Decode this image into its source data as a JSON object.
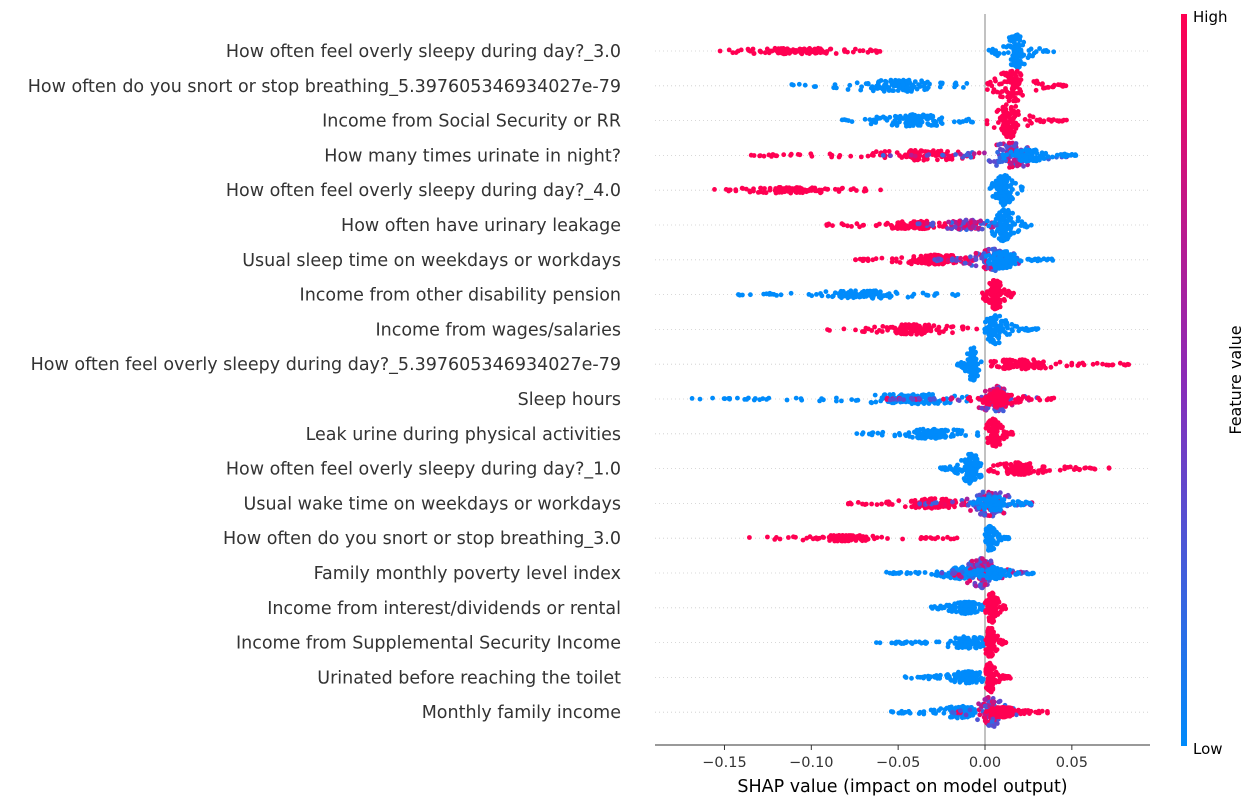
{
  "chart_data": {
    "type": "scatter",
    "subtype": "shap-beeswarm",
    "xlabel": "SHAP value (impact on model output)",
    "xlim": [
      -0.19,
      0.095
    ],
    "xticks": [
      -0.15,
      -0.1,
      -0.05,
      0.0,
      0.05
    ],
    "xtick_labels": [
      "−0.15",
      "−0.10",
      "−0.05",
      "0.00",
      "0.05"
    ],
    "zero_line": 0,
    "colorbar": {
      "title": "Feature value",
      "high_label": "High",
      "low_label": "Low",
      "low_color": "#008bfb",
      "mid_color": "#8a2bb8",
      "high_color": "#ff0052"
    },
    "features": [
      {
        "name": "How often feel overly sleepy during day?_3.0",
        "clusters": [
          {
            "min": -0.153,
            "max": -0.06,
            "value": 1,
            "peak": -0.11,
            "spread": 0.03,
            "width": 2
          },
          {
            "min": 0.002,
            "max": 0.04,
            "value": 0,
            "peak": 0.018,
            "spread": 0.006,
            "width": 16
          }
        ]
      },
      {
        "name": "How often do you snort or stop breathing_5.397605346934027e-79",
        "clusters": [
          {
            "min": -0.115,
            "max": -0.01,
            "value": 0,
            "peak": -0.05,
            "spread": 0.025,
            "width": 5
          },
          {
            "min": 0.001,
            "max": 0.047,
            "value": 1,
            "peak": 0.016,
            "spread": 0.008,
            "width": 15
          }
        ]
      },
      {
        "name": "Income from Social Security or RR",
        "clusters": [
          {
            "min": -0.083,
            "max": -0.003,
            "value": 0,
            "peak": -0.04,
            "spread": 0.02,
            "width": 5
          },
          {
            "min": 0.001,
            "max": 0.048,
            "value": 1,
            "peak": 0.014,
            "spread": 0.007,
            "width": 16
          }
        ]
      },
      {
        "name": "How many times urinate in night?",
        "clusters": [
          {
            "min": -0.135,
            "max": -0.01,
            "value": 1,
            "peak": -0.04,
            "spread": 0.03,
            "width": 4
          },
          {
            "min": -0.06,
            "max": 0.053,
            "value": 0.5,
            "peak": 0.015,
            "spread": 0.012,
            "width": 12
          },
          {
            "min": 0.01,
            "max": 0.053,
            "value": 0,
            "peak": 0.025,
            "spread": 0.01,
            "width": 5
          }
        ]
      },
      {
        "name": "How often feel overly sleepy during day?_4.0",
        "clusters": [
          {
            "min": -0.158,
            "max": -0.058,
            "value": 1,
            "peak": -0.11,
            "spread": 0.025,
            "width": 2
          },
          {
            "min": 0.002,
            "max": 0.022,
            "value": 0,
            "peak": 0.011,
            "spread": 0.005,
            "width": 14
          }
        ]
      },
      {
        "name": "How often have urinary leakage",
        "clusters": [
          {
            "min": -0.092,
            "max": -0.005,
            "value": 1,
            "peak": -0.04,
            "spread": 0.02,
            "width": 3
          },
          {
            "min": -0.04,
            "max": 0.01,
            "value": 0.5,
            "peak": -0.01,
            "spread": 0.012,
            "width": 4
          },
          {
            "min": 0.0,
            "max": 0.027,
            "value": 0,
            "peak": 0.011,
            "spread": 0.006,
            "width": 15
          }
        ]
      },
      {
        "name": "Usual sleep time on weekdays or workdays",
        "clusters": [
          {
            "min": -0.076,
            "max": -0.005,
            "value": 1,
            "peak": -0.03,
            "spread": 0.018,
            "width": 4
          },
          {
            "min": -0.03,
            "max": 0.025,
            "value": 0.5,
            "peak": 0.005,
            "spread": 0.01,
            "width": 10
          },
          {
            "min": 0.0,
            "max": 0.039,
            "value": 0,
            "peak": 0.01,
            "spread": 0.008,
            "width": 8
          }
        ]
      },
      {
        "name": "Income from other disability pension",
        "clusters": [
          {
            "min": -0.143,
            "max": -0.01,
            "value": 0,
            "peak": -0.07,
            "spread": 0.025,
            "width": 3
          },
          {
            "min": -0.002,
            "max": 0.018,
            "value": 1,
            "peak": 0.006,
            "spread": 0.004,
            "width": 14
          }
        ]
      },
      {
        "name": "Income from wages/salaries",
        "clusters": [
          {
            "min": -0.092,
            "max": -0.003,
            "value": 1,
            "peak": -0.04,
            "spread": 0.02,
            "width": 4
          },
          {
            "min": -0.002,
            "max": 0.031,
            "value": 0,
            "peak": 0.006,
            "spread": 0.006,
            "width": 14
          }
        ]
      },
      {
        "name": "How often feel overly sleepy during day?_5.397605346934027e-79",
        "clusters": [
          {
            "min": -0.016,
            "max": -0.002,
            "value": 0,
            "peak": -0.007,
            "spread": 0.003,
            "width": 16
          },
          {
            "min": 0.002,
            "max": 0.083,
            "value": 1,
            "peak": 0.02,
            "spread": 0.018,
            "width": 4
          }
        ]
      },
      {
        "name": "Sleep hours",
        "clusters": [
          {
            "min": -0.179,
            "max": -0.005,
            "value": 0,
            "peak": -0.04,
            "spread": 0.03,
            "width": 4
          },
          {
            "min": -0.06,
            "max": 0.03,
            "value": 0.5,
            "peak": 0.006,
            "spread": 0.01,
            "width": 12
          },
          {
            "min": -0.01,
            "max": 0.04,
            "value": 1,
            "peak": 0.008,
            "spread": 0.008,
            "width": 6
          }
        ]
      },
      {
        "name": "Leak urine during physical activities",
        "clusters": [
          {
            "min": -0.074,
            "max": -0.002,
            "value": 0,
            "peak": -0.03,
            "spread": 0.015,
            "width": 4
          },
          {
            "min": 0.0,
            "max": 0.016,
            "value": 1,
            "peak": 0.005,
            "spread": 0.004,
            "width": 14
          }
        ]
      },
      {
        "name": "How often feel overly sleepy during day?_1.0",
        "clusters": [
          {
            "min": -0.026,
            "max": -0.002,
            "value": 0,
            "peak": -0.008,
            "spread": 0.005,
            "width": 14
          },
          {
            "min": 0.002,
            "max": 0.072,
            "value": 1,
            "peak": 0.02,
            "spread": 0.015,
            "width": 5
          }
        ]
      },
      {
        "name": "Usual wake time on weekdays or workdays",
        "clusters": [
          {
            "min": -0.08,
            "max": -0.005,
            "value": 1,
            "peak": -0.03,
            "spread": 0.015,
            "width": 4
          },
          {
            "min": -0.04,
            "max": 0.028,
            "value": 0.5,
            "peak": 0.003,
            "spread": 0.01,
            "width": 12
          },
          {
            "min": -0.01,
            "max": 0.028,
            "value": 0,
            "peak": 0.005,
            "spread": 0.008,
            "width": 6
          }
        ]
      },
      {
        "name": "How often do you snort or stop breathing_3.0",
        "clusters": [
          {
            "min": -0.14,
            "max": -0.015,
            "value": 1,
            "peak": -0.08,
            "spread": 0.02,
            "width": 2
          },
          {
            "min": 0.0,
            "max": 0.014,
            "value": 0,
            "peak": 0.003,
            "spread": 0.003,
            "width": 12
          }
        ]
      },
      {
        "name": "Family monthly poverty level index",
        "clusters": [
          {
            "min": -0.058,
            "max": -0.005,
            "value": 0,
            "peak": -0.015,
            "spread": 0.01,
            "width": 5
          },
          {
            "min": -0.025,
            "max": 0.025,
            "value": 0.5,
            "peak": -0.002,
            "spread": 0.008,
            "width": 14
          },
          {
            "min": -0.01,
            "max": 0.028,
            "value": 0,
            "peak": 0.005,
            "spread": 0.007,
            "width": 5
          }
        ]
      },
      {
        "name": "Income from interest/dividends or rental",
        "clusters": [
          {
            "min": -0.031,
            "max": -0.001,
            "value": 0,
            "peak": -0.01,
            "spread": 0.008,
            "width": 5
          },
          {
            "min": 0.0,
            "max": 0.012,
            "value": 1,
            "peak": 0.004,
            "spread": 0.003,
            "width": 14
          }
        ]
      },
      {
        "name": "Income from Supplemental Security Income",
        "clusters": [
          {
            "min": -0.063,
            "max": -0.001,
            "value": 0,
            "peak": -0.01,
            "spread": 0.012,
            "width": 5
          },
          {
            "min": 0.0,
            "max": 0.012,
            "value": 1,
            "peak": 0.003,
            "spread": 0.003,
            "width": 14
          }
        ]
      },
      {
        "name": "Urinated before reaching the toilet",
        "clusters": [
          {
            "min": -0.048,
            "max": -0.001,
            "value": 0,
            "peak": -0.01,
            "spread": 0.01,
            "width": 5
          },
          {
            "min": 0.0,
            "max": 0.016,
            "value": 1,
            "peak": 0.003,
            "spread": 0.003,
            "width": 14
          }
        ]
      },
      {
        "name": "Monthly family income",
        "clusters": [
          {
            "min": -0.054,
            "max": -0.005,
            "value": 0,
            "peak": -0.015,
            "spread": 0.01,
            "width": 5
          },
          {
            "min": -0.02,
            "max": 0.025,
            "value": 0.5,
            "peak": 0.003,
            "spread": 0.007,
            "width": 14
          },
          {
            "min": 0.0,
            "max": 0.036,
            "value": 1,
            "peak": 0.01,
            "spread": 0.008,
            "width": 4
          }
        ]
      }
    ]
  }
}
